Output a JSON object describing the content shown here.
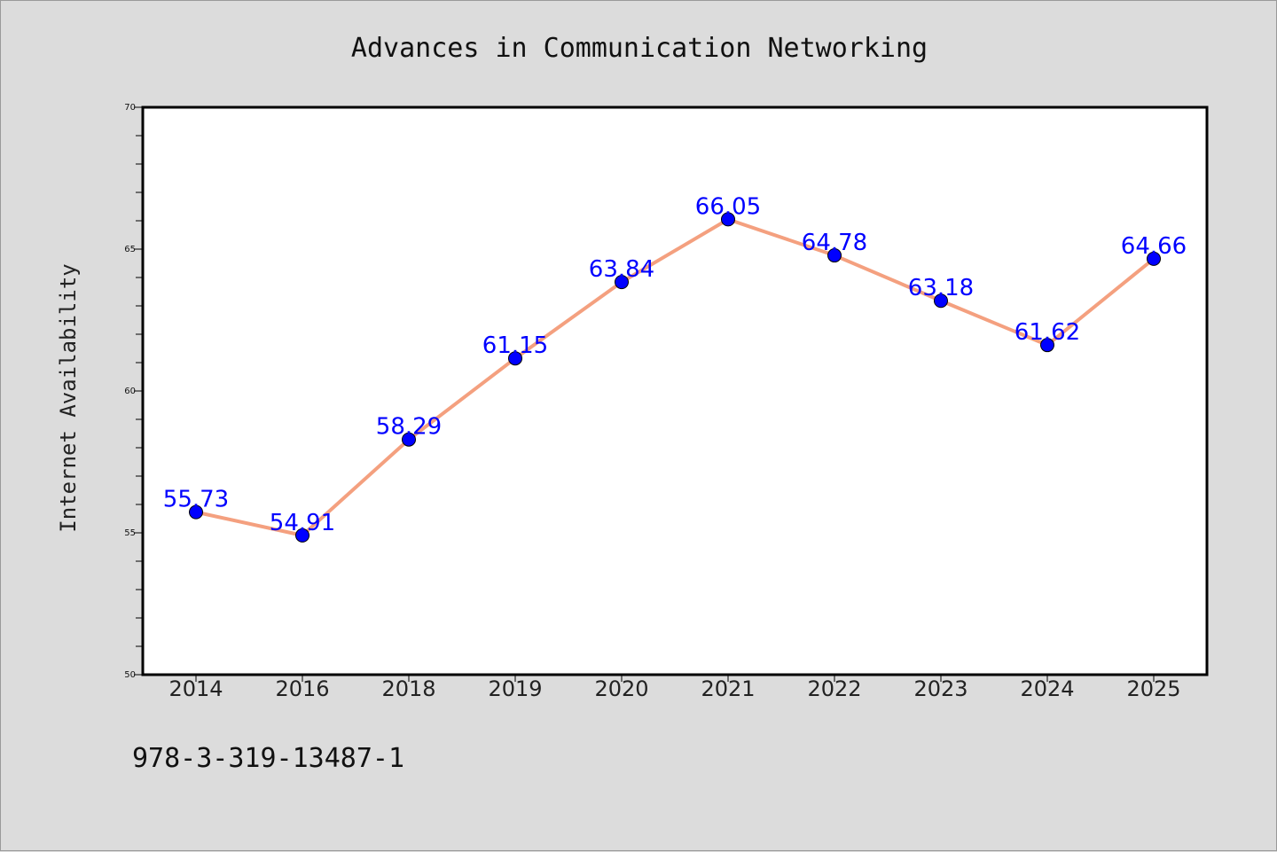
{
  "chart_data": {
    "type": "line",
    "title": "Advances in Communication Networking",
    "xlabel": "",
    "ylabel": "Internet Availability",
    "categories": [
      "2014",
      "2016",
      "2018",
      "2019",
      "2020",
      "2021",
      "2022",
      "2023",
      "2024",
      "2025"
    ],
    "series": [
      {
        "values": [
          55.73,
          54.91,
          58.29,
          61.15,
          63.84,
          66.05,
          64.78,
          63.18,
          61.62,
          64.66
        ],
        "labels": [
          "55.73",
          "54.91",
          "58.29",
          "61.15",
          "63.84",
          "66.05",
          "64.78",
          "63.18",
          "61.62",
          "64.66"
        ],
        "line_color": "#f4a07f",
        "marker_color": "#0000ff"
      }
    ],
    "ylim": [
      50,
      70
    ],
    "yticks": [
      50,
      55,
      60,
      65,
      70
    ],
    "grid": false
  },
  "footer": {
    "isbn": "978-3-319-13487-1"
  },
  "colors": {
    "background": "#dcdcdc",
    "plot_area": "#ffffff",
    "axis": "#000000",
    "label_text": "#0000ff"
  }
}
